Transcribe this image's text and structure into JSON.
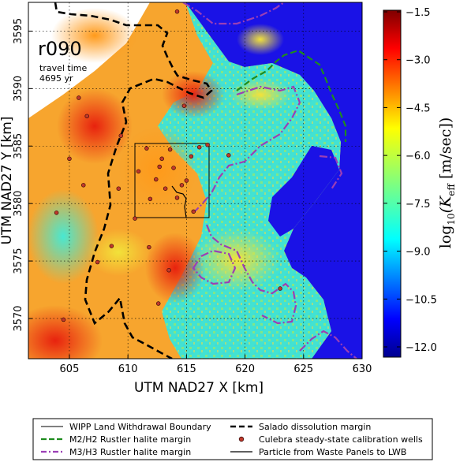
{
  "map": {
    "realization": "r090",
    "travel_time_label": "travel time",
    "travel_time_value": "4695 yr",
    "xlabel": "UTM NAD27 X [km]",
    "ylabel": "UTM NAD27 Y [km]",
    "xlim": [
      601.5,
      630
    ],
    "ylim": [
      3566.5,
      3597.5
    ],
    "x_ticks": [
      "605",
      "610",
      "615",
      "620",
      "625",
      "630"
    ],
    "y_ticks": [
      "3570",
      "3575",
      "3580",
      "3585",
      "3590",
      "3595"
    ],
    "grid": "dotted",
    "colorbar": {
      "label_prefix": "log",
      "label_sub": "10",
      "label_body": "(K",
      "label_sub2": "eff",
      "label_end": " [m/sec])",
      "range": [
        -12.0,
        -1.5
      ],
      "ticks": [
        "−1.5",
        "−3.0",
        "−4.5",
        "−6.0",
        "−7.5",
        "−9.0",
        "−10.5",
        "−12.0"
      ],
      "colormap": "jet"
    },
    "colors": {
      "salado": "#000000",
      "m2h2": "#1e8c1e",
      "m3h3": "#9b3fb5",
      "wells": "#c0392b",
      "ocean_low_k": "#1a12e6"
    },
    "wells": [
      [
        603.9,
        3579.2
      ],
      [
        605.0,
        3583.9
      ],
      [
        606.2,
        3581.6
      ],
      [
        606.5,
        3587.6
      ],
      [
        608.6,
        3576.3
      ],
      [
        609.2,
        3581.3
      ],
      [
        609.4,
        3585.9
      ],
      [
        610.6,
        3578.7
      ],
      [
        610.9,
        3582.8
      ],
      [
        611.6,
        3584.8
      ],
      [
        611.9,
        3580.4
      ],
      [
        612.4,
        3582.1
      ],
      [
        612.7,
        3583.2
      ],
      [
        612.9,
        3583.9
      ],
      [
        613.2,
        3581.3
      ],
      [
        613.6,
        3584.7
      ],
      [
        613.9,
        3583.1
      ],
      [
        614.2,
        3580.5
      ],
      [
        614.6,
        3581.6
      ],
      [
        615.0,
        3582.0
      ],
      [
        615.4,
        3584.1
      ],
      [
        615.6,
        3579.3
      ],
      [
        616.1,
        3584.9
      ],
      [
        616.8,
        3585.1
      ],
      [
        618.6,
        3584.2
      ],
      [
        607.4,
        3574.9
      ],
      [
        613.5,
        3574.2
      ],
      [
        604.5,
        3569.9
      ],
      [
        612.6,
        3571.3
      ],
      [
        623.0,
        3572.6
      ],
      [
        611.8,
        3576.2
      ],
      [
        614.2,
        3596.7
      ],
      [
        605.8,
        3589.2
      ],
      [
        614.8,
        3588.5
      ]
    ]
  },
  "legend": {
    "items": [
      {
        "label": "WIPP Land Withdrawal Boundary",
        "style": "thin-solid"
      },
      {
        "label": "Salado dissolution margin",
        "style": "black-dashed"
      },
      {
        "label": "M2/H2 Rustler halite margin",
        "style": "green-dashed"
      },
      {
        "label": "Culebra steady-state calibration wells",
        "style": "red-dot"
      },
      {
        "label": "M3/H3 Rustler halite margin",
        "style": "purple-dashdot"
      },
      {
        "label": "Particle from Waste Panels to LWB",
        "style": "thin-solid"
      }
    ]
  }
}
